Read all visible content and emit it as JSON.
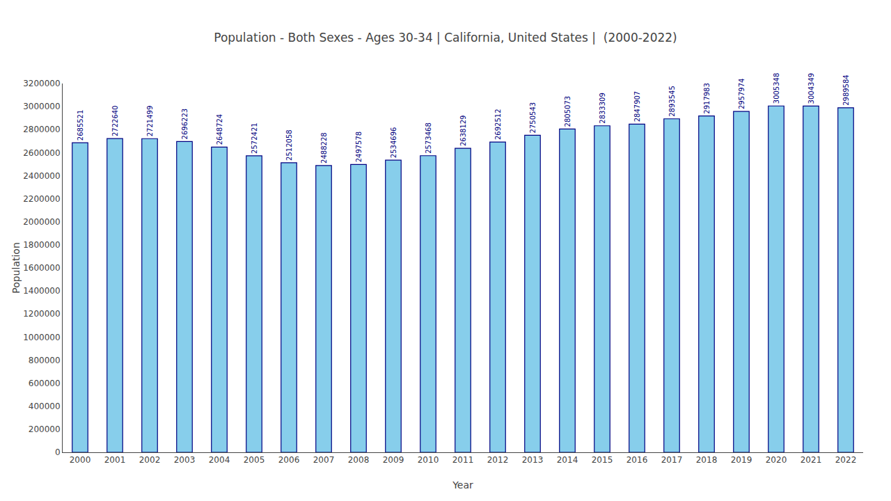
{
  "chart_data": {
    "type": "bar",
    "title": "Population - Both Sexes - Ages 30-34 | California, United States |  (2000-2022)",
    "xlabel": "Year",
    "ylabel": "Population",
    "categories": [
      "2000",
      "2001",
      "2002",
      "2003",
      "2004",
      "2005",
      "2006",
      "2007",
      "2008",
      "2009",
      "2010",
      "2011",
      "2012",
      "2013",
      "2014",
      "2015",
      "2016",
      "2017",
      "2018",
      "2019",
      "2020",
      "2021",
      "2022"
    ],
    "values": [
      2685521,
      2722640,
      2721499,
      2696223,
      2648724,
      2572421,
      2512058,
      2488228,
      2497578,
      2534696,
      2573468,
      2638129,
      2692512,
      2750543,
      2805073,
      2833309,
      2847907,
      2893545,
      2917983,
      2957974,
      3005348,
      3004349,
      2989584
    ],
    "color": "#87CEEB",
    "ylim": [
      0,
      3200000
    ],
    "yticks": [
      0,
      200000,
      400000,
      600000,
      800000,
      1000000,
      1200000,
      1400000,
      1600000,
      1800000,
      2000000,
      2200000,
      2400000,
      2600000,
      2800000,
      3000000,
      3200000
    ],
    "grid": false,
    "data_labels": true
  }
}
